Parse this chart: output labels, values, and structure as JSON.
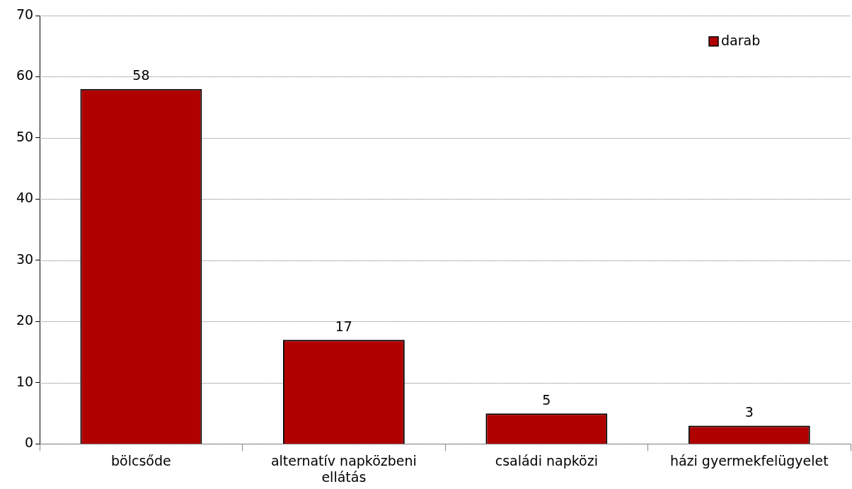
{
  "chart_data": {
    "type": "bar",
    "categories": [
      "bölcsőde",
      "alternatív napközbeni ellátás",
      "családi napközi",
      "házi gyermekfelügyelet"
    ],
    "series": [
      {
        "name": "darab",
        "color": "#b00000",
        "values": [
          58,
          17,
          5,
          3
        ]
      }
    ],
    "ylim": [
      0,
      70
    ],
    "yticks": [
      0,
      10,
      20,
      30,
      40,
      50,
      60,
      70
    ],
    "grid": "y",
    "legend": "top right",
    "data_labels": true
  }
}
